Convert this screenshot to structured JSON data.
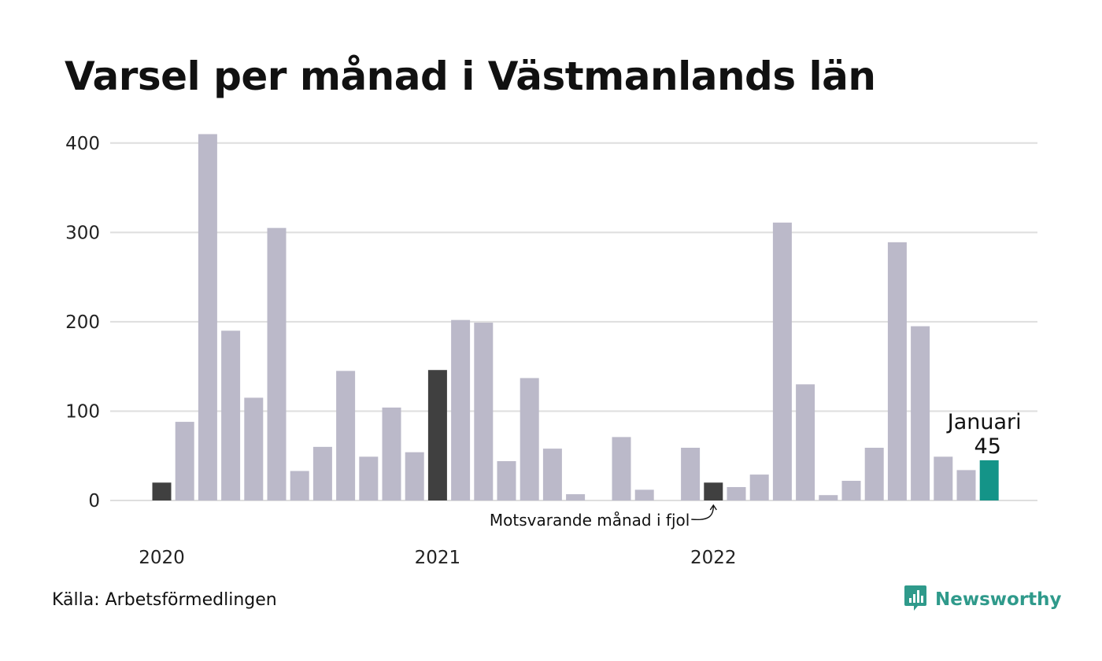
{
  "colors": {
    "bar": "#bbb9c9",
    "bar_prev_year": "#404040",
    "bar_current": "#149488",
    "grid": "#dedede",
    "brand": "#2f9a8b"
  },
  "chart_data": {
    "type": "bar",
    "title": "Varsel per månad i Västmanlands län",
    "xlabel": "",
    "ylabel": "",
    "ylim": [
      0,
      420
    ],
    "yticks": [
      0,
      100,
      200,
      300,
      400
    ],
    "year_labels": [
      {
        "label": "2020",
        "month_index": 0
      },
      {
        "label": "2021",
        "month_index": 12
      },
      {
        "label": "2022",
        "month_index": 24
      }
    ],
    "categories": [
      "2020-01",
      "2020-02",
      "2020-03",
      "2020-04",
      "2020-05",
      "2020-06",
      "2020-07",
      "2020-08",
      "2020-09",
      "2020-10",
      "2020-11",
      "2020-12",
      "2021-01",
      "2021-02",
      "2021-03",
      "2021-04",
      "2021-05",
      "2021-06",
      "2021-07",
      "2021-08",
      "2021-09",
      "2021-10",
      "2021-11",
      "2021-12",
      "2022-01",
      "2022-02",
      "2022-03",
      "2022-04",
      "2022-05",
      "2022-06",
      "2022-07",
      "2022-08",
      "2022-09",
      "2022-10",
      "2022-11",
      "2022-12",
      "2023-01"
    ],
    "values": [
      20,
      88,
      410,
      190,
      115,
      305,
      33,
      60,
      145,
      49,
      104,
      54,
      146,
      202,
      199,
      44,
      137,
      58,
      7,
      0,
      71,
      12,
      0,
      59,
      20,
      15,
      29,
      311,
      130,
      6,
      22,
      59,
      289,
      195,
      49,
      34,
      45
    ],
    "grid": true,
    "highlight": {
      "prev_year_index": [
        0,
        12,
        24
      ],
      "current_index": 36,
      "current_label": "Januari",
      "current_value": "45"
    },
    "annotation": "Motsvarande månad i fjol"
  },
  "source": "Källa: Arbetsförmedlingen",
  "brand": {
    "name": "Newsworthy",
    "icon": "newsworthy-logo-icon"
  }
}
